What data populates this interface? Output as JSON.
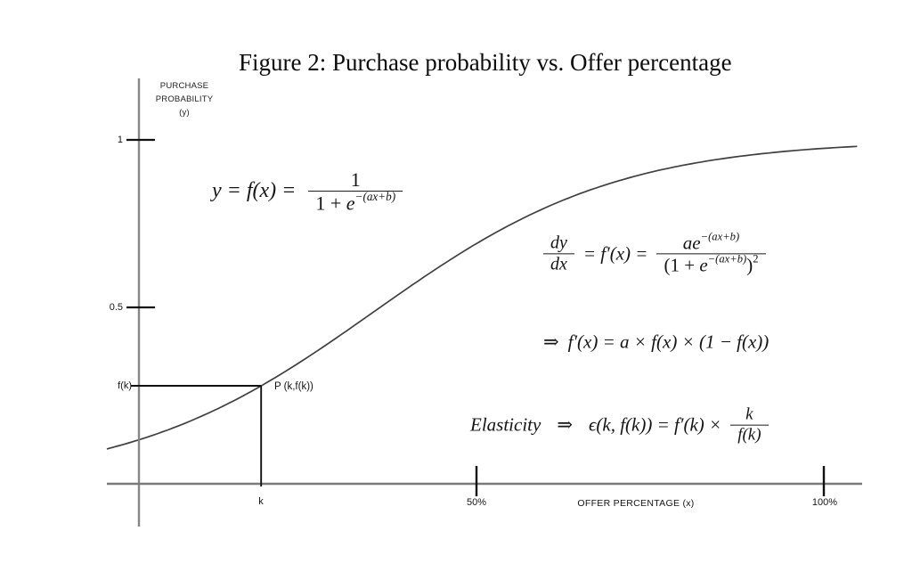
{
  "title": "Figure 2: Purchase probability vs. Offer percentage",
  "y_axis": {
    "label_line1": "PURCHASE",
    "label_line2": "PROBABILITY",
    "label_line3": "(y)",
    "tick_top": "1",
    "tick_mid": "0.5",
    "tick_fk": "f(k)"
  },
  "x_axis": {
    "label": "OFFER PERCENTAGE (x)",
    "tick_k": "k",
    "tick_50": "50%",
    "tick_100": "100%"
  },
  "point_label": "P (k,f(k))",
  "formulas": {
    "logistic": {
      "lhs": "y = f(x) =",
      "num": "1",
      "den_pre": "1 + ",
      "den_e": "e",
      "den_exp": "−(ax+b)"
    },
    "derivative": {
      "num_top": "dy",
      "den_bot": "dx",
      "mid": "= f′(x) =",
      "rnum_base": "ae",
      "rnum_exp": "−(ax+b)",
      "rden_pre": "(1 + ",
      "rden_e": "e",
      "rden_exp": "−(ax+b)",
      "rden_close": ")",
      "rden_pow": "2"
    },
    "simplified": {
      "arrow": "⇒",
      "body": "f′(x) = a × f(x) × (1 − f(x))"
    },
    "elasticity": {
      "word": "Elasticity",
      "arrow": "⇒",
      "body": "ϵ(k, f(k)) = f′(k) ×",
      "num": "k",
      "den": "f(k)"
    }
  },
  "chart_data": {
    "type": "line",
    "title": "Figure 2: Purchase probability vs. Offer percentage",
    "xlabel": "OFFER PERCENTAGE (x)",
    "ylabel": "PURCHASE PROBABILITY (y)",
    "x_tick_labels": [
      "k",
      "50%",
      "100%"
    ],
    "y_tick_labels": [
      "f(k)",
      "0.5",
      "1"
    ],
    "xlim_pct": [
      -3,
      105
    ],
    "ylim": [
      0,
      1
    ],
    "grid": false,
    "legend": false,
    "curve_function": "y = f(x) = 1 / (1 + e^−(ax+b))",
    "logistic_params": {
      "a_per_pct": 0.0568,
      "b": -2.0
    },
    "annotated_point": {
      "label": "P (k,f(k))",
      "x_pct": 19,
      "y": 0.285
    },
    "guide_lines": [
      "horizontal segment from y-axis at f(k) to point P",
      "vertical segment from point P down to x-axis at k"
    ],
    "samples": {
      "x_pct": [
        0,
        10,
        20,
        30,
        40,
        50,
        60,
        70,
        80,
        90,
        100
      ],
      "y": [
        0.12,
        0.19,
        0.3,
        0.43,
        0.57,
        0.7,
        0.8,
        0.88,
        0.93,
        0.96,
        0.98
      ]
    }
  }
}
